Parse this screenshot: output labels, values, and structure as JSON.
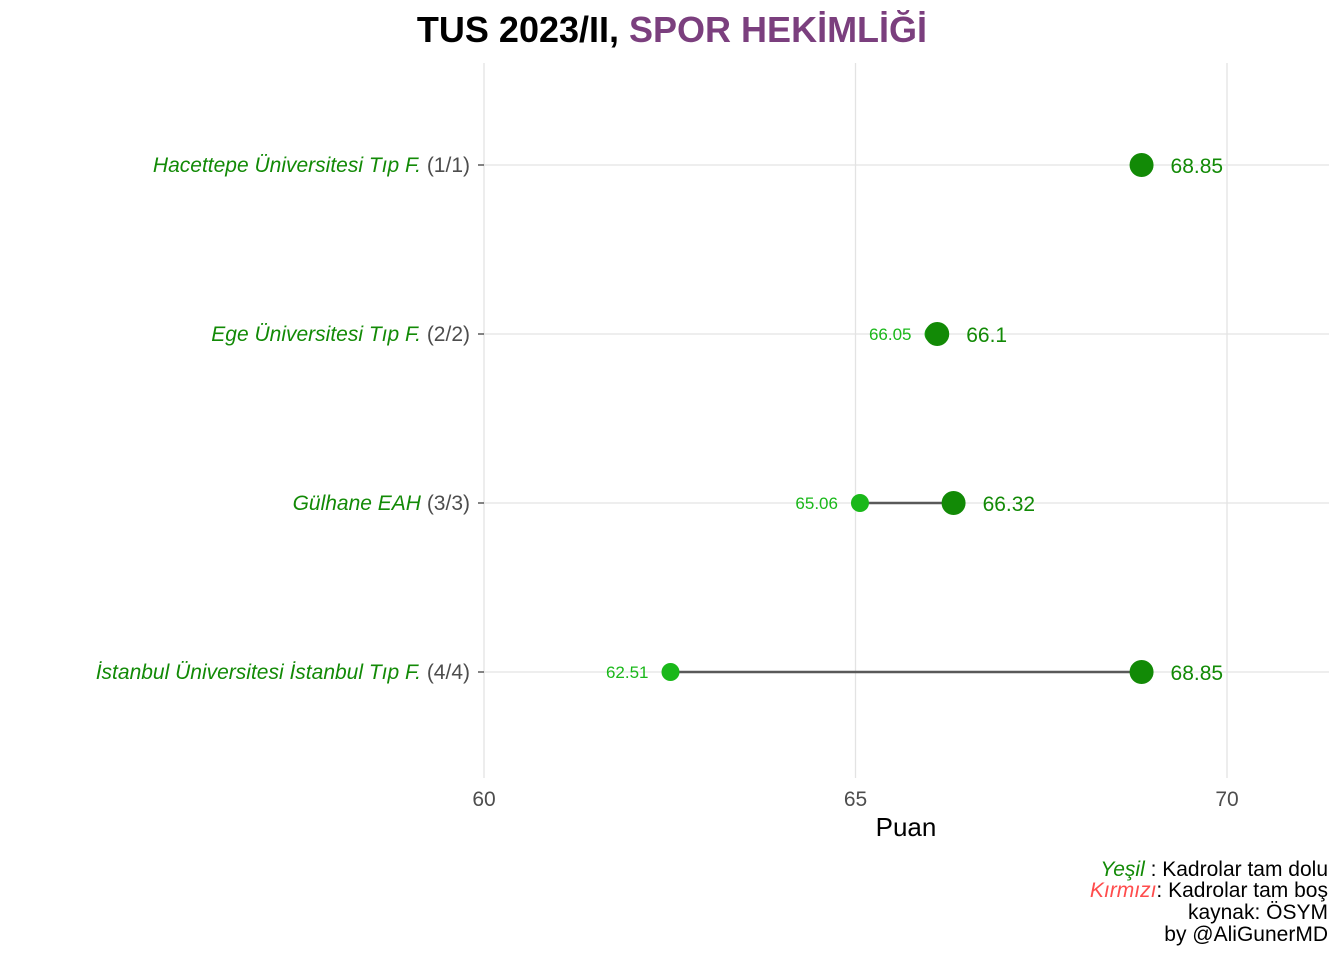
{
  "chart_data": {
    "type": "dumbbell",
    "title_parts": [
      "TUS 2023/II, ",
      "SPOR HEKİMLİĞİ"
    ],
    "xlabel": "Puan",
    "ylabel": "",
    "xlim": [
      56.8,
      71.4
    ],
    "x_ticks": [
      60,
      65,
      70
    ],
    "grid": true,
    "rows": [
      {
        "name": "Hacettepe Üniversitesi Tıp F.",
        "count": "(1/1)",
        "min": null,
        "max": 68.85,
        "max_label": "68.85",
        "min_label": ""
      },
      {
        "name": "Ege Üniversitesi Tıp F.",
        "count": "(2/2)",
        "min": 66.05,
        "max": 66.1,
        "max_label": "66.1",
        "min_label": "66.05"
      },
      {
        "name": "Gülhane EAH",
        "count": "(3/3)",
        "min": 65.06,
        "max": 66.32,
        "max_label": "66.32",
        "min_label": "65.06"
      },
      {
        "name": "İstanbul Üniversitesi İstanbul Tıp F.",
        "count": "(4/4)",
        "min": 62.51,
        "max": 68.85,
        "max_label": "68.85",
        "min_label": "62.51"
      }
    ]
  },
  "caption": {
    "line1_key": "Yeşil",
    "line1_text": " : Kadrolar tam dolu",
    "line2_key": "Kırmızı",
    "line2_text": ": Kadrolar tam boş",
    "line3": "kaynak: ÖSYM",
    "line4": "by @AliGunerMD"
  },
  "colors": {
    "title_accent": "#7b3f7e",
    "green_dark": "#128a06",
    "green_light": "#1ab81a",
    "red": "#ff4d4d",
    "segment": "#595959",
    "grid": "#e3e3e3",
    "count_text": "#4d4d4d"
  }
}
